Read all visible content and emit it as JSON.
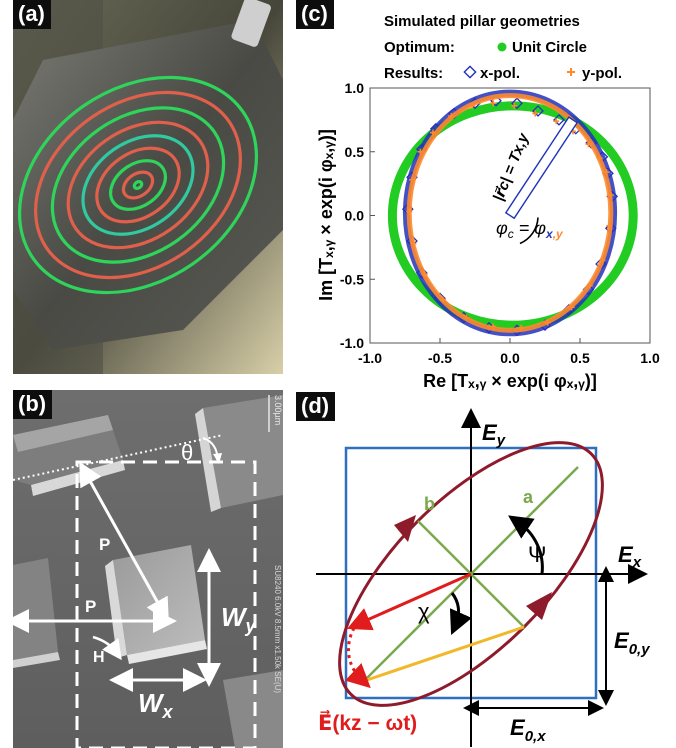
{
  "panels": {
    "a": {
      "label": "(a)"
    },
    "b": {
      "label": "(b)",
      "scalebar": "3.00µm",
      "sem_info": "SU8240 6.0kV 8.5mm x1.50k SE(U)",
      "theta": "θ",
      "p_diag": "P",
      "p_horiz": "P",
      "h": "H",
      "wy_main": "W",
      "wy_sub": "y",
      "wx_main": "W",
      "wx_sub": "x"
    },
    "c": {
      "label": "(c)",
      "header_title": "Simulated pillar geometries",
      "optimum_key": "Optimum:",
      "optimum_value": "Unit Circle",
      "results_key": "Results:",
      "xpol": "x-pol.",
      "ypol": "y-pol.",
      "ylabel": "Im [Tₓ,ᵧ × exp(i φₓ,ᵧ)]",
      "xlabel": "Re [Tₓ,ᵧ × exp(i φₓ,ᵧ)]",
      "rc_annot": "|r⃗c| = Tx,y",
      "phi_main": "φ",
      "phi_sub": "c",
      "phi_eq": " = φ",
      "phi_sub2a": "x",
      "phi_sub2b": ",y"
    },
    "d": {
      "label": "(d)",
      "ey": "E",
      "ey_sub": "y",
      "ex": "E",
      "ex_sub": "x",
      "a": "a",
      "b": "b",
      "psi": "Ψ",
      "chi": "χ",
      "e0y": "E",
      "e0y_sub": "0,y",
      "e0x": "E",
      "e0x_sub": "0,x",
      "field": "E⃗(kz − ωt)"
    }
  },
  "chart_data": [
    {
      "type": "scatter",
      "title": "Simulated pillar geometries",
      "xlabel": "Re [Tx,y × exp(i φx,y)]",
      "ylabel": "Im [Tx,y × exp(i φx,y)]",
      "xlim": [
        -1.0,
        1.0
      ],
      "ylim": [
        -1.0,
        1.0
      ],
      "xticks": [
        "-1.0",
        "-0.5",
        "0.0",
        "0.5",
        "1.0"
      ],
      "yticks": [
        "-1.0",
        "-0.5",
        "0.0",
        "0.5",
        "1.0"
      ],
      "grid": false,
      "legend_position": "top",
      "series": [
        {
          "name": "Unit Circle",
          "kind": "circle",
          "color": "#22cc22",
          "center": [
            0.02,
            0.0
          ],
          "radius": 0.86
        },
        {
          "name": "x-pol.",
          "marker": "diamond",
          "color": "#2233bb",
          "center": [
            0.0,
            0.02
          ],
          "rx": 0.74,
          "ry": 0.94,
          "points": [
            [
              0.66,
              0.46
            ],
            [
              0.58,
              0.57
            ],
            [
              0.47,
              0.68
            ],
            [
              0.35,
              0.75
            ],
            [
              0.2,
              0.82
            ],
            [
              0.05,
              0.88
            ],
            [
              -0.1,
              0.9
            ],
            [
              -0.25,
              0.88
            ],
            [
              -0.4,
              0.8
            ],
            [
              -0.53,
              0.68
            ],
            [
              -0.63,
              0.52
            ],
            [
              -0.7,
              0.3
            ],
            [
              -0.73,
              0.05
            ],
            [
              -0.7,
              -0.2
            ],
            [
              -0.63,
              -0.45
            ],
            [
              -0.5,
              -0.65
            ],
            [
              -0.33,
              -0.8
            ],
            [
              -0.15,
              -0.88
            ],
            [
              0.05,
              -0.9
            ],
            [
              0.25,
              -0.86
            ],
            [
              0.42,
              -0.74
            ],
            [
              0.56,
              -0.58
            ],
            [
              0.65,
              -0.38
            ],
            [
              0.72,
              -0.1
            ],
            [
              0.73,
              0.15
            ],
            [
              0.7,
              0.33
            ]
          ]
        },
        {
          "name": "y-pol.",
          "marker": "plus",
          "color": "#ff8a2b",
          "center": [
            0.0,
            0.02
          ],
          "rx": 0.72,
          "ry": 0.92,
          "points": [
            [
              0.64,
              0.45
            ],
            [
              0.56,
              0.56
            ],
            [
              0.45,
              0.66
            ],
            [
              0.33,
              0.74
            ],
            [
              0.18,
              0.8
            ],
            [
              0.03,
              0.86
            ],
            [
              -0.12,
              0.88
            ],
            [
              -0.27,
              0.86
            ],
            [
              -0.42,
              0.78
            ],
            [
              -0.55,
              0.65
            ],
            [
              -0.64,
              0.5
            ],
            [
              -0.7,
              0.28
            ],
            [
              -0.72,
              0.03
            ],
            [
              -0.69,
              -0.22
            ],
            [
              -0.61,
              -0.46
            ],
            [
              -0.48,
              -0.66
            ],
            [
              -0.31,
              -0.8
            ],
            [
              -0.12,
              -0.87
            ],
            [
              0.08,
              -0.88
            ],
            [
              0.27,
              -0.84
            ],
            [
              0.44,
              -0.72
            ],
            [
              0.57,
              -0.55
            ],
            [
              0.66,
              -0.35
            ],
            [
              0.71,
              -0.08
            ],
            [
              0.72,
              0.16
            ],
            [
              0.69,
              0.34
            ]
          ]
        }
      ],
      "annotation_vector": {
        "from": [
          0.0,
          0.0
        ],
        "to": [
          0.45,
          0.75
        ]
      }
    }
  ]
}
